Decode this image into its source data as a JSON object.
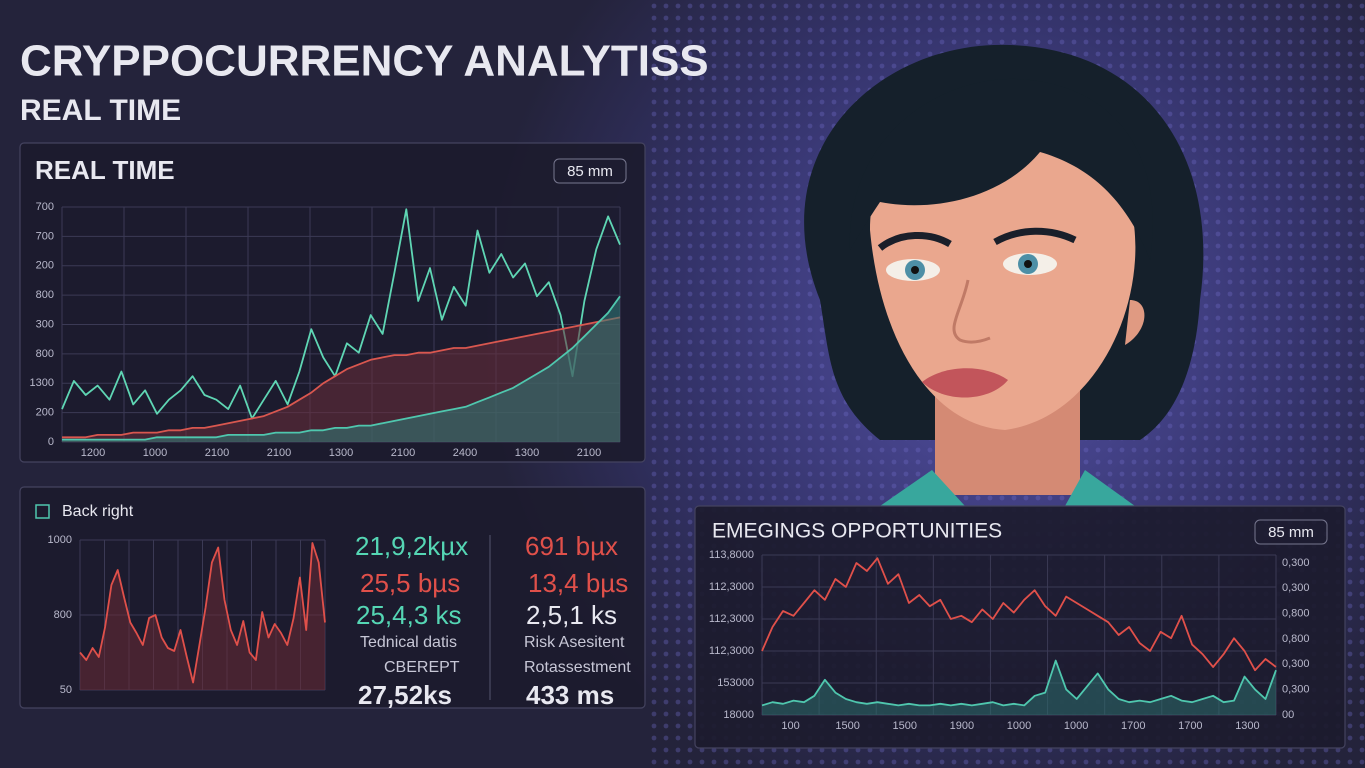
{
  "header": {
    "title": "CRYPPOCURRENCY ANALYTISS",
    "subtitle": "REAL TIME"
  },
  "chart_data": [
    {
      "type": "line",
      "title": "REAL TIME",
      "badge": "85 mm",
      "y_labels": [
        "700",
        "700",
        "200",
        "800",
        "300",
        "800",
        "1300",
        "200",
        "0"
      ],
      "x_labels": [
        "1200",
        "1000",
        "2100",
        "2100",
        "1300",
        "2100",
        "2400",
        "1300",
        "2100"
      ],
      "x": [
        0,
        1,
        2,
        3,
        4,
        5,
        6,
        7,
        8,
        9,
        10,
        11,
        12,
        13,
        14,
        15,
        16,
        17,
        18,
        19,
        20,
        21,
        22,
        23,
        24,
        25,
        26,
        27,
        28,
        29,
        30,
        31,
        32,
        33,
        34,
        35,
        36,
        37,
        38,
        39,
        40,
        41,
        42,
        43,
        44,
        45,
        46,
        47
      ],
      "xlim": [
        0,
        47
      ],
      "ylim": [
        0,
        100
      ],
      "series": [
        {
          "color": "#5fd6b4",
          "values": [
            14,
            26,
            20,
            24,
            18,
            30,
            16,
            22,
            12,
            18,
            22,
            28,
            20,
            18,
            14,
            24,
            10,
            18,
            26,
            16,
            30,
            48,
            36,
            28,
            42,
            38,
            54,
            46,
            72,
            99,
            60,
            74,
            52,
            66,
            58,
            90,
            72,
            80,
            70,
            76,
            62,
            68,
            54,
            28,
            60,
            82,
            96,
            84
          ]
        },
        {
          "color": "#d9574f",
          "fill": "#6b2e3a",
          "values": [
            2,
            2,
            2,
            3,
            3,
            3,
            4,
            4,
            4,
            5,
            5,
            6,
            6,
            7,
            8,
            9,
            10,
            11,
            13,
            15,
            18,
            21,
            25,
            28,
            31,
            33,
            35,
            36,
            37,
            37,
            38,
            38,
            39,
            40,
            40,
            41,
            42,
            43,
            44,
            45,
            46,
            47,
            48,
            49,
            50,
            51,
            52,
            53
          ]
        },
        {
          "color": "#4fc7ae",
          "fill": "#2f7d78",
          "values": [
            1,
            1,
            1,
            1,
            1,
            1,
            1,
            1,
            2,
            2,
            2,
            2,
            2,
            2,
            3,
            3,
            3,
            3,
            4,
            4,
            4,
            5,
            5,
            6,
            6,
            7,
            7,
            8,
            9,
            10,
            11,
            12,
            13,
            14,
            15,
            17,
            19,
            21,
            23,
            26,
            29,
            32,
            36,
            40,
            45,
            50,
            55,
            62
          ]
        }
      ]
    },
    {
      "type": "line",
      "title": "Back right",
      "y_labels": [
        "1000",
        "800",
        "50"
      ],
      "x": [
        0,
        1,
        2,
        3,
        4,
        5,
        6,
        7,
        8,
        9,
        10,
        11,
        12,
        13,
        14,
        15,
        16,
        17,
        18,
        19,
        20,
        21,
        22,
        23,
        24,
        25,
        26,
        27,
        28,
        29,
        30,
        31,
        32,
        33,
        34,
        35,
        36,
        37,
        38,
        39
      ],
      "xlim": [
        0,
        39
      ],
      "ylim": [
        0,
        100
      ],
      "series": [
        {
          "color": "#e0504a",
          "fill": "#6b2a35",
          "values": [
            25,
            20,
            28,
            22,
            42,
            70,
            80,
            62,
            45,
            38,
            30,
            48,
            50,
            35,
            28,
            26,
            40,
            22,
            5,
            30,
            55,
            85,
            95,
            60,
            40,
            30,
            46,
            25,
            20,
            52,
            35,
            44,
            38,
            30,
            48,
            75,
            40,
            98,
            85,
            45
          ]
        }
      ]
    },
    {
      "type": "line",
      "title": "EMEGINGS OPPORTUNITIES",
      "badge": "85 mm",
      "y_labels": [
        "113,8000",
        "112,3000",
        "112,3000",
        "112,3000",
        "153000",
        "18000"
      ],
      "y2_labels": [
        "0,300",
        "0,300",
        "0,800",
        "0,800",
        "0,300",
        "0,300",
        "00"
      ],
      "x_labels": [
        "100",
        "1500",
        "1500",
        "1900",
        "1000",
        "1000",
        "1700",
        "1700",
        "1300"
      ],
      "x": [
        0,
        1,
        2,
        3,
        4,
        5,
        6,
        7,
        8,
        9,
        10,
        11,
        12,
        13,
        14,
        15,
        16,
        17,
        18,
        19,
        20,
        21,
        22,
        23,
        24,
        25,
        26,
        27,
        28,
        29,
        30,
        31,
        32,
        33,
        34,
        35,
        36,
        37,
        38,
        39,
        40,
        41,
        42,
        43,
        44,
        45,
        46,
        47,
        48,
        49
      ],
      "xlim": [
        0,
        49
      ],
      "ylim": [
        0,
        100
      ],
      "series": [
        {
          "color": "#e0504a",
          "values": [
            40,
            55,
            65,
            62,
            70,
            78,
            72,
            85,
            80,
            95,
            90,
            98,
            82,
            88,
            70,
            75,
            68,
            72,
            60,
            62,
            58,
            66,
            60,
            70,
            64,
            72,
            78,
            68,
            62,
            74,
            70,
            66,
            62,
            58,
            50,
            55,
            45,
            40,
            52,
            48,
            62,
            44,
            38,
            30,
            38,
            48,
            40,
            28,
            35,
            30
          ]
        },
        {
          "color": "#4fc7ae",
          "fill": "#2b6e6c",
          "values": [
            6,
            8,
            7,
            9,
            8,
            12,
            22,
            14,
            10,
            8,
            7,
            8,
            7,
            6,
            7,
            6,
            6,
            7,
            6,
            7,
            6,
            7,
            8,
            6,
            7,
            6,
            12,
            14,
            34,
            16,
            10,
            18,
            26,
            16,
            10,
            8,
            9,
            8,
            10,
            12,
            9,
            8,
            10,
            12,
            8,
            9,
            24,
            16,
            10,
            28
          ]
        }
      ]
    }
  ],
  "stats": {
    "left": [
      "21,9,2kµx",
      "25,5 bµs",
      "25,4,3 ks",
      "Tednical datis",
      "CBEREPT",
      "27,52ks"
    ],
    "right": [
      "691 bµx",
      "13,4 bµs",
      "2,5,1 ks",
      "Risk Asesitent",
      "Rotassestment",
      "433 ms"
    ]
  }
}
